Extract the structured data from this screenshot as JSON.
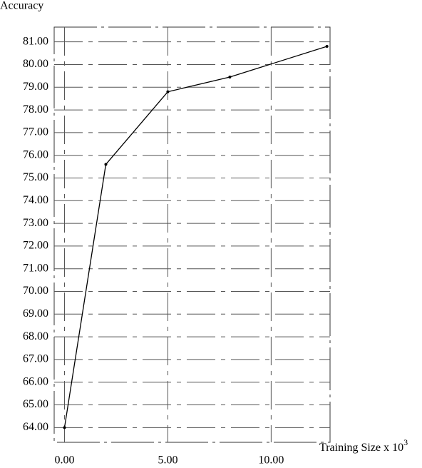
{
  "chart_data": {
    "type": "line",
    "ylabel": "Accuracy",
    "xlabel": "Training Size x 10",
    "xlabel_exponent": "3",
    "x": [
      0,
      2,
      5,
      8,
      12.7
    ],
    "series": [
      {
        "color": "#000000",
        "values": [
          64.0,
          75.6,
          78.8,
          79.45,
          80.8
        ]
      }
    ],
    "xlim": [
      -0.5,
      12.85
    ],
    "ylim": [
      63.35,
      81.65
    ],
    "xticks": [
      {
        "value": 0,
        "label": "0.00"
      },
      {
        "value": 5,
        "label": "5.00"
      },
      {
        "value": 10,
        "label": "10.00"
      }
    ],
    "yticks": [
      {
        "value": 64,
        "label": "64.00"
      },
      {
        "value": 65,
        "label": "65.00"
      },
      {
        "value": 66,
        "label": "66.00"
      },
      {
        "value": 67,
        "label": "67.00"
      },
      {
        "value": 68,
        "label": "68.00"
      },
      {
        "value": 69,
        "label": "69.00"
      },
      {
        "value": 70,
        "label": "70.00"
      },
      {
        "value": 71,
        "label": "71.00"
      },
      {
        "value": 72,
        "label": "72.00"
      },
      {
        "value": 73,
        "label": "73.00"
      },
      {
        "value": 74,
        "label": "74.00"
      },
      {
        "value": 75,
        "label": "75.00"
      },
      {
        "value": 76,
        "label": "76.00"
      },
      {
        "value": 77,
        "label": "77.00"
      },
      {
        "value": 78,
        "label": "78.00"
      },
      {
        "value": 79,
        "label": "79.00"
      },
      {
        "value": 80,
        "label": "80.00"
      },
      {
        "value": 81,
        "label": "81.00"
      }
    ],
    "grid": true
  }
}
